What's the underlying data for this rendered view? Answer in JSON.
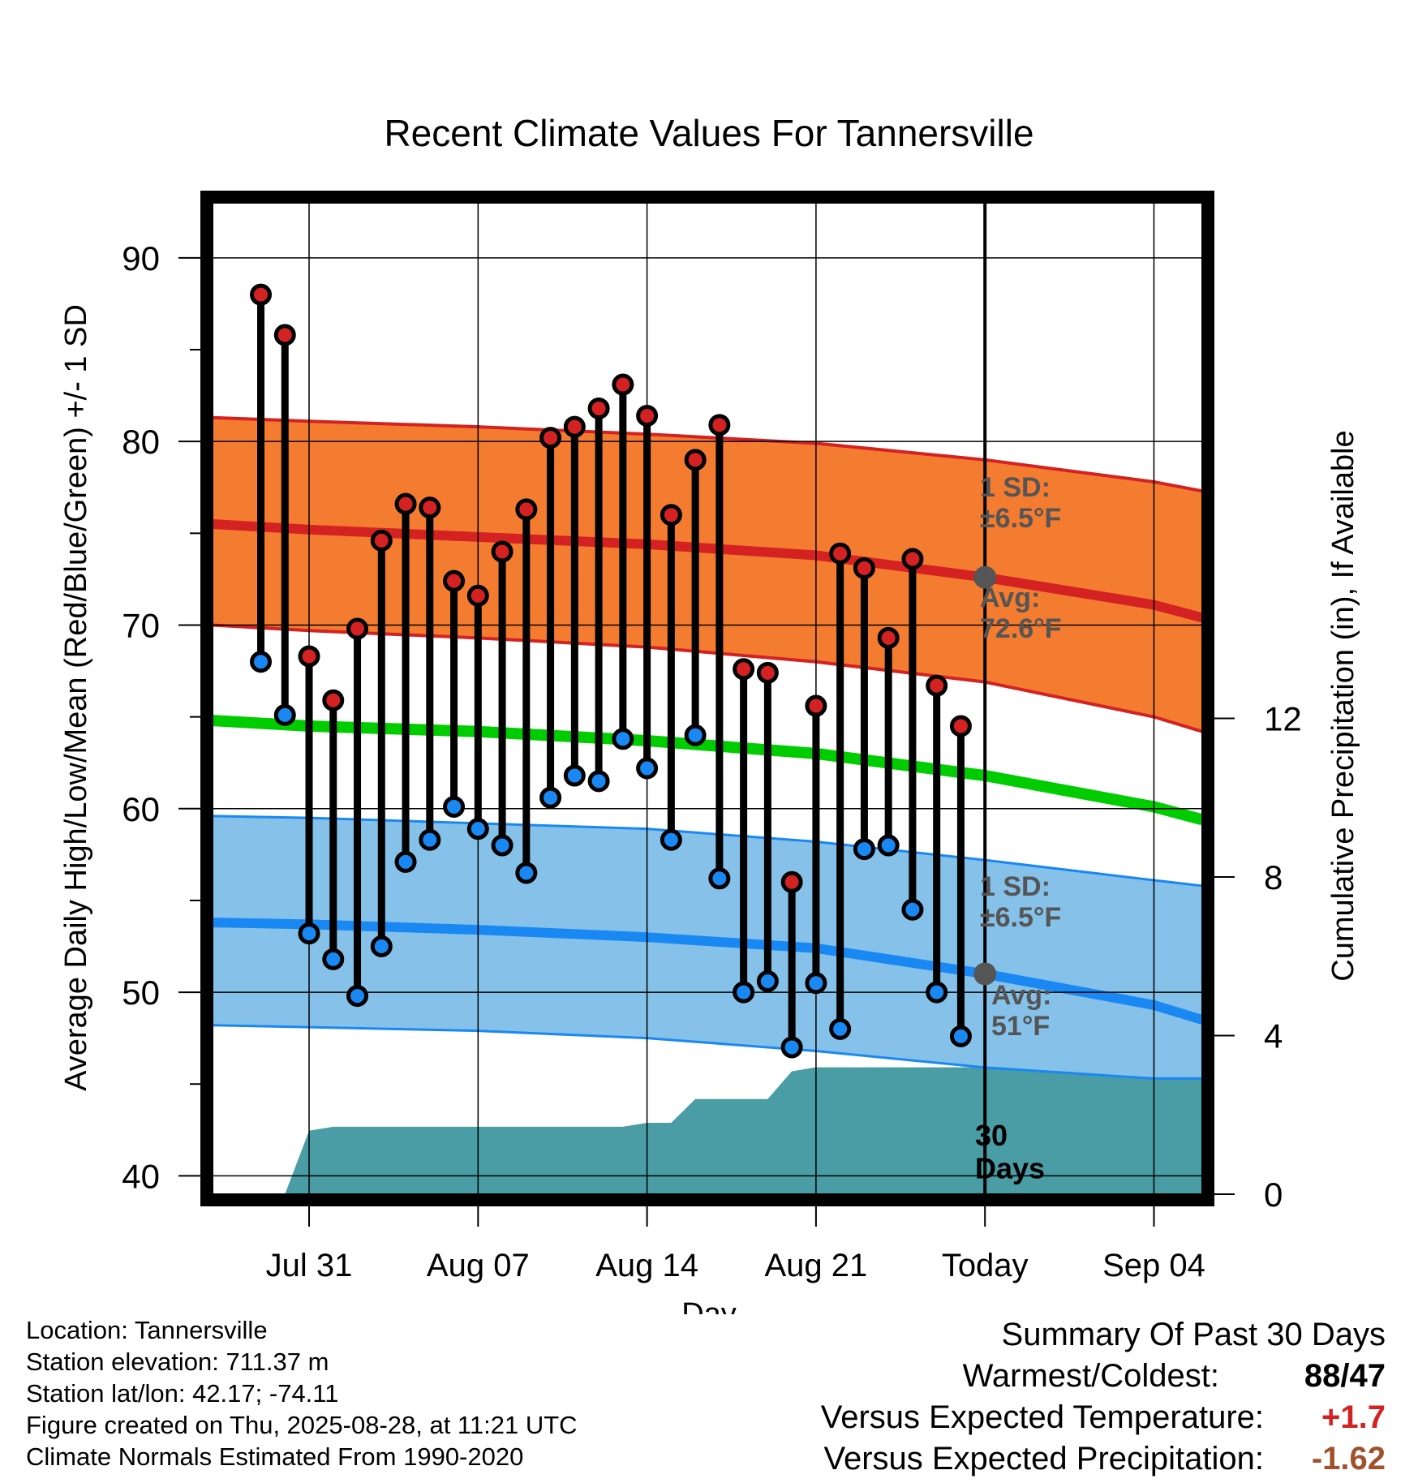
{
  "chart_data": {
    "type": "line",
    "title": "Recent Climate Values For Tannersville",
    "xlabel": "Day",
    "ylabel": "Average Daily High/Low/Mean (Red/Blue/Green) +/- 1 SD",
    "ylabel_right": "Cumulative Precipitation (in), If Available",
    "ylim": [
      39,
      93
    ],
    "ylim_right": [
      0,
      25
    ],
    "yticks": [
      40,
      50,
      60,
      70,
      80,
      90
    ],
    "yticks_right": [
      0,
      4,
      8,
      12
    ],
    "x_range": [
      "2025-07-27",
      "2025-09-06"
    ],
    "xticks": [
      {
        "date": "2025-07-31",
        "label": "Jul 31"
      },
      {
        "date": "2025-08-07",
        "label": "Aug 07"
      },
      {
        "date": "2025-08-14",
        "label": "Aug 14"
      },
      {
        "date": "2025-08-21",
        "label": "Aug 21"
      },
      {
        "date": "2025-08-28",
        "label": "Today"
      },
      {
        "date": "2025-09-04",
        "label": "Sep 04"
      }
    ],
    "today": "2025-08-28",
    "grid": true,
    "dates": [
      "2025-07-29",
      "2025-07-30",
      "2025-07-31",
      "2025-08-01",
      "2025-08-02",
      "2025-08-03",
      "2025-08-04",
      "2025-08-05",
      "2025-08-06",
      "2025-08-07",
      "2025-08-08",
      "2025-08-09",
      "2025-08-10",
      "2025-08-11",
      "2025-08-12",
      "2025-08-13",
      "2025-08-14",
      "2025-08-15",
      "2025-08-16",
      "2025-08-17",
      "2025-08-18",
      "2025-08-19",
      "2025-08-20",
      "2025-08-21",
      "2025-08-22",
      "2025-08-23",
      "2025-08-24",
      "2025-08-25",
      "2025-08-26",
      "2025-08-27"
    ],
    "highs": [
      88.0,
      85.8,
      68.3,
      65.9,
      69.8,
      74.6,
      76.6,
      76.4,
      72.4,
      71.6,
      74.0,
      76.3,
      80.2,
      80.8,
      81.8,
      83.1,
      81.4,
      76.0,
      79.0,
      80.9,
      67.6,
      67.4,
      56.0,
      65.6,
      73.9,
      73.1,
      69.3,
      73.6,
      66.7,
      64.5
    ],
    "lows": [
      68.0,
      65.1,
      53.2,
      51.8,
      49.8,
      52.5,
      57.1,
      58.3,
      60.1,
      58.9,
      58.0,
      56.5,
      60.6,
      61.8,
      61.5,
      63.8,
      62.2,
      58.3,
      64.0,
      56.2,
      50.0,
      50.6,
      47.0,
      50.5,
      48.0,
      57.8,
      58.0,
      54.5,
      50.0,
      47.6
    ],
    "normals": {
      "dates": [
        "2025-07-27",
        "2025-07-31",
        "2025-08-07",
        "2025-08-14",
        "2025-08-21",
        "2025-08-28",
        "2025-09-04",
        "2025-09-06"
      ],
      "avg_high": [
        75.5,
        75.2,
        74.8,
        74.4,
        73.8,
        72.6,
        71.1,
        70.4
      ],
      "high_upper": [
        81.3,
        81.1,
        80.8,
        80.4,
        79.9,
        79.0,
        77.8,
        77.3
      ],
      "high_lower": [
        70.0,
        69.7,
        69.3,
        68.8,
        68.0,
        66.9,
        65.0,
        64.2
      ],
      "avg_mean": [
        64.8,
        64.5,
        64.2,
        63.7,
        63.0,
        61.8,
        60.1,
        59.4
      ],
      "avg_low": [
        53.8,
        53.7,
        53.4,
        53.0,
        52.4,
        51.0,
        49.3,
        48.5
      ],
      "low_upper": [
        59.6,
        59.5,
        59.2,
        58.9,
        58.2,
        57.2,
        56.1,
        55.8
      ],
      "low_lower": [
        48.2,
        48.1,
        47.9,
        47.5,
        46.8,
        45.9,
        45.3,
        45.3
      ]
    },
    "precip": {
      "dates": [
        "2025-07-30",
        "2025-07-31",
        "2025-08-01",
        "2025-08-13",
        "2025-08-14",
        "2025-08-15",
        "2025-08-16",
        "2025-08-19",
        "2025-08-20",
        "2025-08-21",
        "2025-08-25",
        "2025-09-06"
      ],
      "cumulative": [
        0.0,
        1.6,
        1.7,
        1.7,
        1.8,
        1.8,
        2.4,
        2.4,
        3.1,
        3.2,
        3.2,
        3.2
      ]
    },
    "annotations": {
      "high_sd": "1 SD:\n±6.5°F",
      "high_avg": "Avg:\n72.6°F",
      "low_sd": "1 SD:\n±6.5°F",
      "low_avg": "Avg:\n51°F",
      "days": "30\nDays"
    },
    "colors": {
      "high_band": "#f47c30",
      "high_line": "#d42222",
      "mean_line": "#00cc00",
      "low_band": "#85c1e8",
      "low_line": "#1a88f2",
      "precip_fill": "#4a9ca5",
      "high_marker": "#d42222",
      "low_marker": "#1a88f2",
      "annotation": "#555555"
    }
  },
  "station": {
    "location": "Location: Tannersville",
    "elevation": "Station elevation: 711.37 m",
    "latlon": "Station lat/lon: 42.17; -74.11",
    "created": "Figure created on Thu, 2025-08-28, at 11:21 UTC",
    "normals": "Climate Normals Estimated From 1990-2020"
  },
  "summary": {
    "title": "Summary Of Past 30 Days",
    "warmest_coldest_label": "Warmest/Coldest:",
    "warmest_coldest_value": "88/47",
    "temp_label": "Versus Expected Temperature:",
    "temp_value": "+1.7",
    "temp_color": "#d42222",
    "precip_label": "Versus Expected Precipitation:",
    "precip_value": "-1.62",
    "precip_color": "#a0522d"
  }
}
